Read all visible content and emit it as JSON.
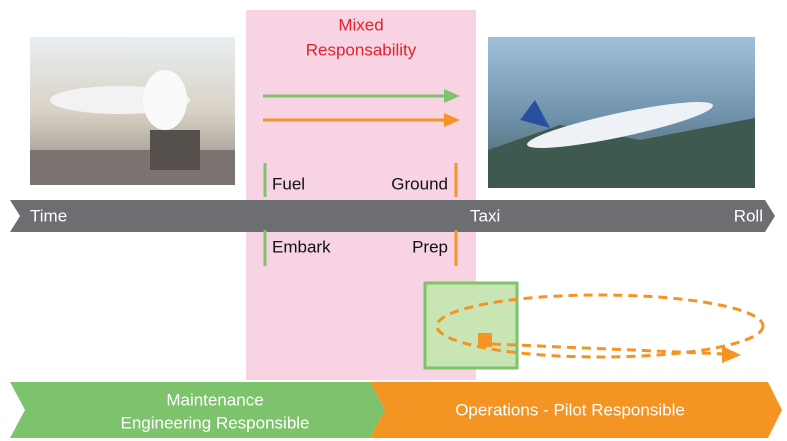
{
  "mixed_zone": {
    "title_lines": [
      "Mixed",
      "Responsability"
    ]
  },
  "timeline": {
    "start": "Time",
    "middle": "Taxi",
    "end": "Roll"
  },
  "steps": {
    "top_left": "Fuel",
    "top_right": "Ground",
    "bottom_left": "Embark",
    "bottom_right": "Prep"
  },
  "phases": {
    "maintenance_lines": [
      "Maintenance",
      "Engineering Responsible"
    ],
    "operations": "Operations - Pilot Responsible"
  }
}
